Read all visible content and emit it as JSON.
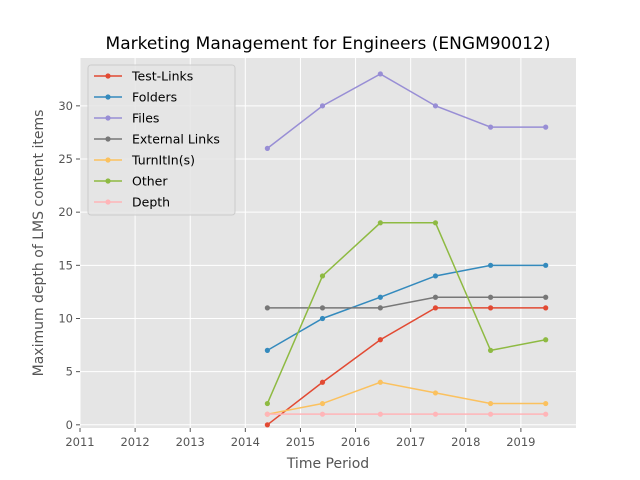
{
  "chart_data": {
    "type": "line",
    "title": "Marketing Management for Engineers (ENGM90012)",
    "xlabel": "Time Period",
    "ylabel": "Maximum depth of LMS content items",
    "xlim": [
      2011,
      2020
    ],
    "ylim": [
      -0.3,
      34.5
    ],
    "xticks": [
      2011,
      2012,
      2013,
      2014,
      2015,
      2016,
      2017,
      2018,
      2019
    ],
    "yticks": [
      0,
      5,
      10,
      15,
      20,
      25,
      30
    ],
    "grid": true,
    "legend_position": "top-left",
    "x": [
      2014.4,
      2015.4,
      2016.45,
      2017.45,
      2018.45,
      2019.45
    ],
    "series": [
      {
        "name": "Test-Links",
        "color": "#e24a33",
        "values": [
          0,
          4,
          8,
          11,
          11,
          11
        ]
      },
      {
        "name": "Folders",
        "color": "#348abd",
        "values": [
          7,
          10,
          12,
          14,
          15,
          15
        ]
      },
      {
        "name": "Files",
        "color": "#988ed5",
        "values": [
          26,
          30,
          33,
          30,
          28,
          28
        ]
      },
      {
        "name": "External Links",
        "color": "#777777",
        "values": [
          11,
          11,
          11,
          12,
          12,
          12
        ]
      },
      {
        "name": "TurnItIn(s)",
        "color": "#fbc15e",
        "values": [
          1,
          2,
          4,
          3,
          2,
          2
        ]
      },
      {
        "name": "Other",
        "color": "#8eba42",
        "values": [
          2,
          14,
          19,
          19,
          7,
          8
        ]
      },
      {
        "name": "Depth",
        "color": "#ffb5b8",
        "values": [
          1,
          1,
          1,
          1,
          1,
          1
        ]
      }
    ]
  }
}
